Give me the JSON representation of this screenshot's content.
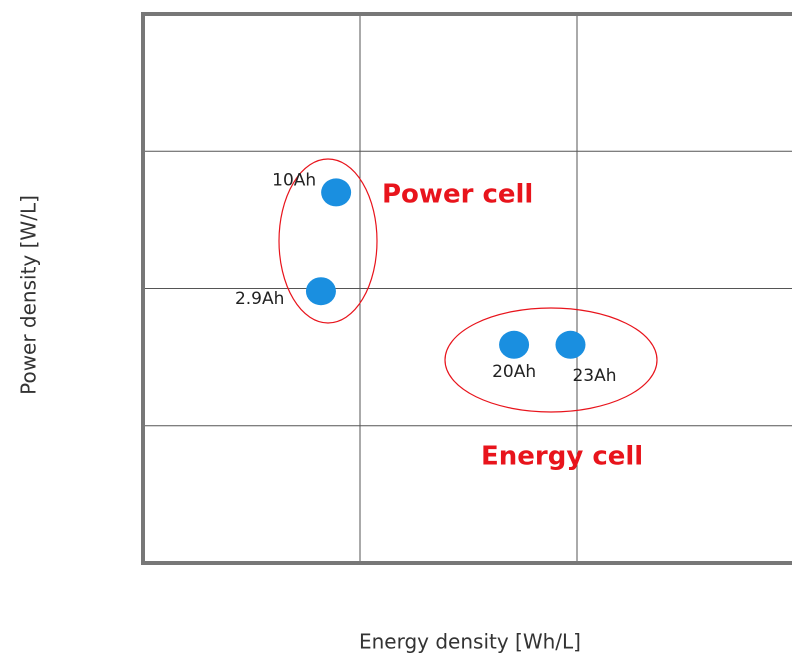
{
  "chart_data": {
    "type": "scatter",
    "x_label": "Energy density [Wh/L]",
    "y_label": "Power density [W/L]",
    "series": [
      {
        "color": "#1a8fe0",
        "x": [
          0.89,
          0.82,
          1.71,
          1.97
        ],
        "values": [
          2.7,
          1.98,
          1.59,
          1.59
        ],
        "point_labels": [
          "10Ah",
          "2.9Ah",
          "20Ah",
          "23Ah"
        ]
      }
    ],
    "annotations": [
      "Power cell",
      "Energy cell"
    ],
    "annotation_color": "#e8141c",
    "xlim": [
      0,
      3
    ],
    "ylim": [
      0,
      4
    ],
    "xticks": [
      1,
      2
    ],
    "yticks": [
      1,
      2,
      3
    ],
    "grid": true
  }
}
